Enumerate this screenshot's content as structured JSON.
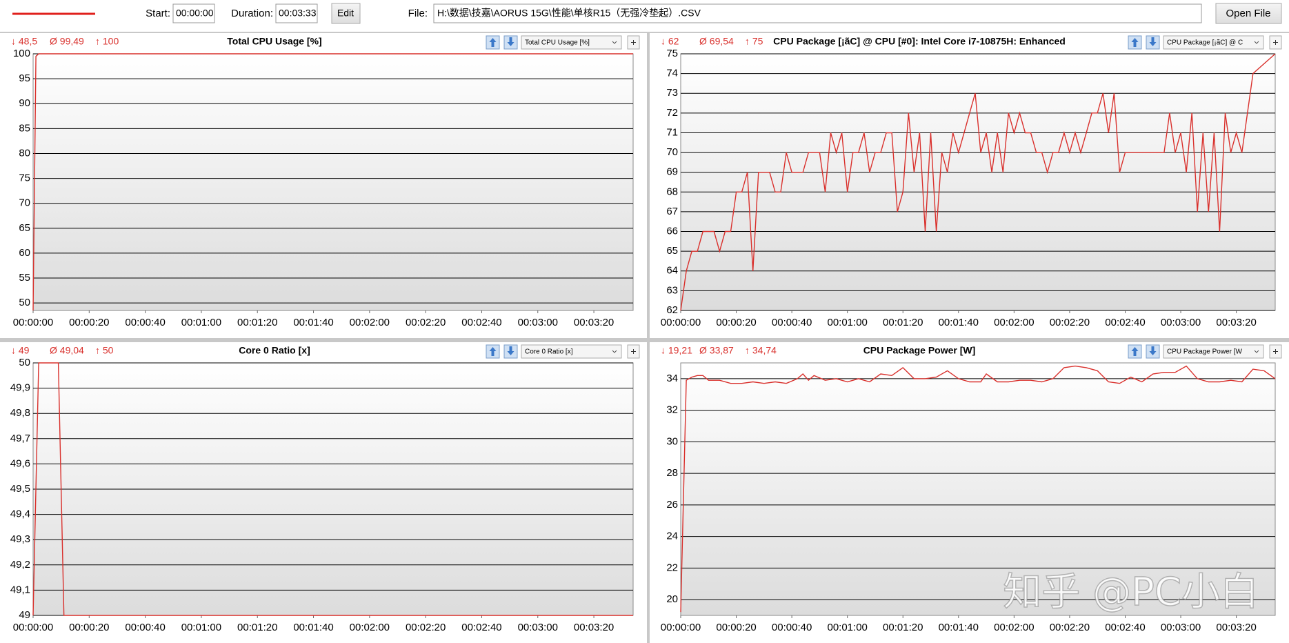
{
  "toolbar": {
    "start_label": "Start:",
    "start": "00:00:00",
    "duration_label": "Duration:",
    "duration": "00:03:33",
    "edit": "Edit",
    "file_label": "File:",
    "file": "H:\\数据\\技嘉\\AORUS 15G\\性能\\单核R15（无强冷垫起）.CSV",
    "open": "Open File"
  },
  "watermark": "知乎 @PC小白",
  "chart_data": [
    {
      "type": "line",
      "title": "Total CPU Usage [%]",
      "stats": [
        "↓ 48,5",
        "Ø 99,49",
        "↑ 100"
      ],
      "selector": "Total CPU Usage [%]",
      "color": "#d9302c",
      "x": [
        0,
        1,
        2,
        214
      ],
      "values": [
        48.5,
        99.5,
        100,
        100
      ],
      "xlim": [
        0,
        214
      ],
      "ylim": [
        48.5,
        100
      ],
      "yticks": [
        50,
        55,
        60,
        65,
        70,
        75,
        80,
        85,
        90,
        95,
        100
      ],
      "xticks": [
        {
          "value": 0,
          "label": "00:00:00"
        },
        {
          "value": 20,
          "label": "00:00:20"
        },
        {
          "value": 40,
          "label": "00:00:40"
        },
        {
          "value": 60,
          "label": "00:01:00"
        },
        {
          "value": 80,
          "label": "00:01:20"
        },
        {
          "value": 100,
          "label": "00:01:40"
        },
        {
          "value": 120,
          "label": "00:02:00"
        },
        {
          "value": 140,
          "label": "00:02:20"
        },
        {
          "value": 160,
          "label": "00:02:40"
        },
        {
          "value": 180,
          "label": "00:03:00"
        },
        {
          "value": 200,
          "label": "00:03:20"
        }
      ],
      "grid": true
    },
    {
      "type": "line",
      "title": "CPU Package [¡ãC] @ CPU [#0]: Intel Core i7-10875H: Enhanced",
      "stats": [
        "↓ 62",
        "Ø 69,54",
        "↑ 75"
      ],
      "selector": "CPU Package [¡ãC] @ C",
      "color": "#d9302c",
      "x": [
        0,
        2,
        4,
        6,
        8,
        10,
        12,
        14,
        16,
        18,
        20,
        22,
        24,
        26,
        28,
        30,
        32,
        34,
        36,
        38,
        40,
        42,
        44,
        46,
        48,
        50,
        52,
        54,
        56,
        58,
        60,
        62,
        64,
        66,
        68,
        70,
        72,
        74,
        76,
        78,
        80,
        82,
        84,
        86,
        88,
        90,
        92,
        94,
        96,
        98,
        100,
        102,
        104,
        106,
        108,
        110,
        112,
        114,
        116,
        118,
        120,
        122,
        124,
        126,
        128,
        130,
        132,
        134,
        136,
        138,
        140,
        142,
        144,
        146,
        148,
        150,
        152,
        154,
        156,
        158,
        160,
        162,
        164,
        166,
        168,
        170,
        172,
        174,
        176,
        178,
        180,
        182,
        184,
        186,
        188,
        190,
        192,
        194,
        196,
        198,
        200,
        202,
        206,
        214
      ],
      "values": [
        62,
        64,
        65,
        65,
        66,
        66,
        66,
        65,
        66,
        66,
        68,
        68,
        69,
        64,
        69,
        69,
        69,
        68,
        68,
        70,
        69,
        69,
        69,
        70,
        70,
        70,
        68,
        71,
        70,
        71,
        68,
        70,
        70,
        71,
        69,
        70,
        70,
        71,
        71,
        67,
        68,
        72,
        69,
        71,
        66,
        71,
        66,
        70,
        69,
        71,
        70,
        71,
        72,
        73,
        70,
        71,
        69,
        71,
        69,
        72,
        71,
        72,
        71,
        71,
        70,
        70,
        69,
        70,
        70,
        71,
        70,
        71,
        70,
        71,
        72,
        72,
        73,
        71,
        73,
        69,
        70,
        70,
        70,
        70,
        70,
        70,
        70,
        70,
        72,
        70,
        71,
        69,
        72,
        67,
        71,
        67,
        71,
        66,
        72,
        70,
        71,
        70,
        74,
        75
      ],
      "xlim": [
        0,
        214
      ],
      "ylim": [
        62,
        75
      ],
      "yticks": [
        62,
        63,
        64,
        65,
        66,
        67,
        68,
        69,
        70,
        71,
        72,
        73,
        74,
        75
      ],
      "xticks": [
        {
          "value": 0,
          "label": "00:00:00"
        },
        {
          "value": 20,
          "label": "00:00:20"
        },
        {
          "value": 40,
          "label": "00:00:40"
        },
        {
          "value": 60,
          "label": "00:01:00"
        },
        {
          "value": 80,
          "label": "00:01:20"
        },
        {
          "value": 100,
          "label": "00:01:40"
        },
        {
          "value": 120,
          "label": "00:02:00"
        },
        {
          "value": 140,
          "label": "00:02:20"
        },
        {
          "value": 160,
          "label": "00:02:40"
        },
        {
          "value": 180,
          "label": "00:03:00"
        },
        {
          "value": 200,
          "label": "00:03:20"
        }
      ],
      "grid": true
    },
    {
      "type": "line",
      "title": "Core 0 Ratio [x]",
      "stats": [
        "↓ 49",
        "Ø 49,04",
        "↑ 50"
      ],
      "selector": "Core 0 Ratio [x]",
      "color": "#d9302c",
      "x": [
        0,
        2,
        9,
        11,
        214
      ],
      "values": [
        49,
        50,
        50,
        49,
        49
      ],
      "xlim": [
        0,
        214
      ],
      "ylim": [
        49,
        50
      ],
      "yticks": [
        49,
        {
          "value": 49.1,
          "label": "49,1"
        },
        {
          "value": 49.2,
          "label": "49,2"
        },
        {
          "value": 49.3,
          "label": "49,3"
        },
        {
          "value": 49.4,
          "label": "49,4"
        },
        {
          "value": 49.5,
          "label": "49,5"
        },
        {
          "value": 49.6,
          "label": "49,6"
        },
        {
          "value": 49.7,
          "label": "49,7"
        },
        {
          "value": 49.8,
          "label": "49,8"
        },
        {
          "value": 49.9,
          "label": "49,9"
        },
        50
      ],
      "xticks": [
        {
          "value": 0,
          "label": "00:00:00"
        },
        {
          "value": 20,
          "label": "00:00:20"
        },
        {
          "value": 40,
          "label": "00:00:40"
        },
        {
          "value": 60,
          "label": "00:01:00"
        },
        {
          "value": 80,
          "label": "00:01:20"
        },
        {
          "value": 100,
          "label": "00:01:40"
        },
        {
          "value": 120,
          "label": "00:02:00"
        },
        {
          "value": 140,
          "label": "00:02:20"
        },
        {
          "value": 160,
          "label": "00:02:40"
        },
        {
          "value": 180,
          "label": "00:03:00"
        },
        {
          "value": 200,
          "label": "00:03:20"
        }
      ],
      "grid": true
    },
    {
      "type": "line",
      "title": "CPU Package Power [W]",
      "stats": [
        "↓ 19,21",
        "Ø 33,87",
        "↑ 34,74"
      ],
      "selector": "CPU Package Power [W",
      "color": "#d9302c",
      "x": [
        0,
        2,
        4,
        6,
        8,
        10,
        14,
        18,
        22,
        26,
        30,
        34,
        38,
        42,
        44,
        46,
        48,
        52,
        56,
        60,
        64,
        68,
        72,
        76,
        80,
        84,
        88,
        92,
        96,
        100,
        104,
        108,
        110,
        114,
        118,
        122,
        126,
        130,
        134,
        138,
        142,
        146,
        150,
        154,
        158,
        162,
        166,
        170,
        174,
        178,
        182,
        186,
        190,
        194,
        198,
        202,
        206,
        210,
        214
      ],
      "values": [
        19.21,
        33.9,
        34.1,
        34.2,
        34.2,
        33.9,
        33.9,
        33.7,
        33.7,
        33.8,
        33.7,
        33.8,
        33.7,
        34.0,
        34.3,
        33.9,
        34.2,
        33.9,
        34.0,
        33.8,
        34.0,
        33.8,
        34.3,
        34.2,
        34.7,
        34.0,
        34.0,
        34.1,
        34.5,
        34.0,
        33.8,
        33.8,
        34.3,
        33.8,
        33.8,
        33.9,
        33.9,
        33.8,
        34.0,
        34.7,
        34.8,
        34.7,
        34.5,
        33.8,
        33.7,
        34.1,
        33.8,
        34.3,
        34.4,
        34.4,
        34.8,
        34.0,
        33.8,
        33.8,
        33.9,
        33.8,
        34.6,
        34.5,
        34.0
      ],
      "xlim": [
        0,
        214
      ],
      "ylim": [
        19,
        35
      ],
      "yticks": [
        20,
        22,
        24,
        26,
        28,
        30,
        32,
        34
      ],
      "xticks": [
        {
          "value": 0,
          "label": "00:00:00"
        },
        {
          "value": 20,
          "label": "00:00:20"
        },
        {
          "value": 40,
          "label": "00:00:40"
        },
        {
          "value": 60,
          "label": "00:01:00"
        },
        {
          "value": 80,
          "label": "00:01:20"
        },
        {
          "value": 100,
          "label": "00:01:40"
        },
        {
          "value": 120,
          "label": "00:02:00"
        },
        {
          "value": 140,
          "label": "00:02:20"
        },
        {
          "value": 160,
          "label": "00:02:40"
        },
        {
          "value": 180,
          "label": "00:03:00"
        },
        {
          "value": 200,
          "label": "00:03:20"
        }
      ],
      "grid": true
    }
  ]
}
